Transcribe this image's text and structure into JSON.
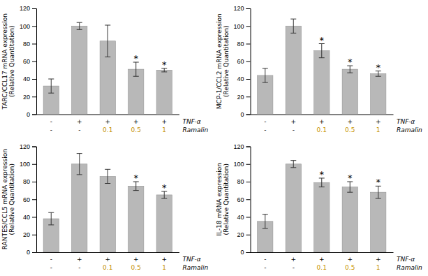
{
  "chart_data": [
    {
      "type": "bar",
      "ylabel": "TARC/CCL17 mRNA expression\n(Relative Quantitation)",
      "values": [
        32,
        100,
        83,
        51,
        50
      ],
      "errors": [
        8,
        4,
        18,
        8,
        2
      ],
      "sig": [
        false,
        false,
        false,
        true,
        true
      ],
      "sig_label": "*",
      "ylim": [
        0,
        120
      ],
      "yticks": [
        0,
        20,
        40,
        60,
        80,
        100,
        120
      ],
      "color": "#b8b8b8",
      "grid": false,
      "tick_labels": "y",
      "label_rows": [
        {
          "name": "TNF-α",
          "labels": [
            "-",
            "+",
            "+",
            "+",
            "+"
          ],
          "colors": [
            "black",
            "black",
            "black",
            "black",
            "black"
          ]
        },
        {
          "name": "Ramalin",
          "labels": [
            "-",
            "-",
            "0.1",
            "0.5",
            "1"
          ],
          "colors": [
            "black",
            "black",
            "#c8960a",
            "#c8960a",
            "#c8960a"
          ]
        }
      ]
    },
    {
      "type": "bar",
      "ylabel": "MCP-1/CCL2 mRNA expression\n(Relative Quantitation)",
      "values": [
        44,
        100,
        72,
        51,
        46
      ],
      "errors": [
        8,
        8,
        8,
        4,
        3
      ],
      "sig": [
        false,
        false,
        true,
        true,
        true
      ],
      "sig_label": "*",
      "ylim": [
        0,
        120
      ],
      "yticks": [
        0,
        20,
        40,
        60,
        80,
        100,
        120
      ],
      "color": "#b8b8b8",
      "grid": false,
      "tick_labels": "y",
      "label_rows": [
        {
          "name": "TNF-α",
          "labels": [
            "-",
            "+",
            "+",
            "+",
            "+"
          ],
          "colors": [
            "black",
            "black",
            "black",
            "black",
            "black"
          ]
        },
        {
          "name": "Ramalin",
          "labels": [
            "-",
            "-",
            "0.1",
            "0.5",
            "1"
          ],
          "colors": [
            "black",
            "black",
            "#c8960a",
            "#c8960a",
            "#c8960a"
          ]
        }
      ]
    },
    {
      "type": "bar",
      "ylabel": "RANTES/CCL5 mRNA expression\n(Relative Quantitation)",
      "values": [
        38,
        100,
        86,
        75,
        65
      ],
      "errors": [
        7,
        12,
        8,
        5,
        4
      ],
      "sig": [
        false,
        false,
        false,
        true,
        true
      ],
      "sig_label": "*",
      "ylim": [
        0,
        120
      ],
      "yticks": [
        0,
        20,
        40,
        60,
        80,
        100,
        120
      ],
      "color": "#b8b8b8",
      "grid": false,
      "tick_labels": "y",
      "label_rows": [
        {
          "name": "TNF-α",
          "labels": [
            "-",
            "+",
            "+",
            "+",
            "+"
          ],
          "colors": [
            "black",
            "black",
            "black",
            "black",
            "black"
          ]
        },
        {
          "name": "Ramalin",
          "labels": [
            "-",
            "-",
            "0.1",
            "0.5",
            "1"
          ],
          "colors": [
            "black",
            "black",
            "#c8960a",
            "#c8960a",
            "#c8960a"
          ]
        }
      ]
    },
    {
      "type": "bar",
      "ylabel": "IL-18 mRNA expression\n(Relative Quantitation)",
      "values": [
        35,
        100,
        79,
        74,
        68
      ],
      "errors": [
        8,
        4,
        5,
        6,
        7
      ],
      "sig": [
        false,
        false,
        true,
        true,
        true
      ],
      "sig_label": "*",
      "ylim": [
        0,
        120
      ],
      "yticks": [
        0,
        20,
        40,
        60,
        80,
        100,
        120
      ],
      "color": "#b8b8b8",
      "grid": false,
      "tick_labels": "y",
      "label_rows": [
        {
          "name": "TNF-α",
          "labels": [
            "-",
            "+",
            "+",
            "+",
            "+"
          ],
          "colors": [
            "black",
            "black",
            "black",
            "black",
            "black"
          ]
        },
        {
          "name": "Ramalin",
          "labels": [
            "-",
            "-",
            "0.1",
            "0.5",
            "1"
          ],
          "colors": [
            "black",
            "black",
            "#c8960a",
            "#c8960a",
            "#c8960a"
          ]
        }
      ]
    }
  ]
}
